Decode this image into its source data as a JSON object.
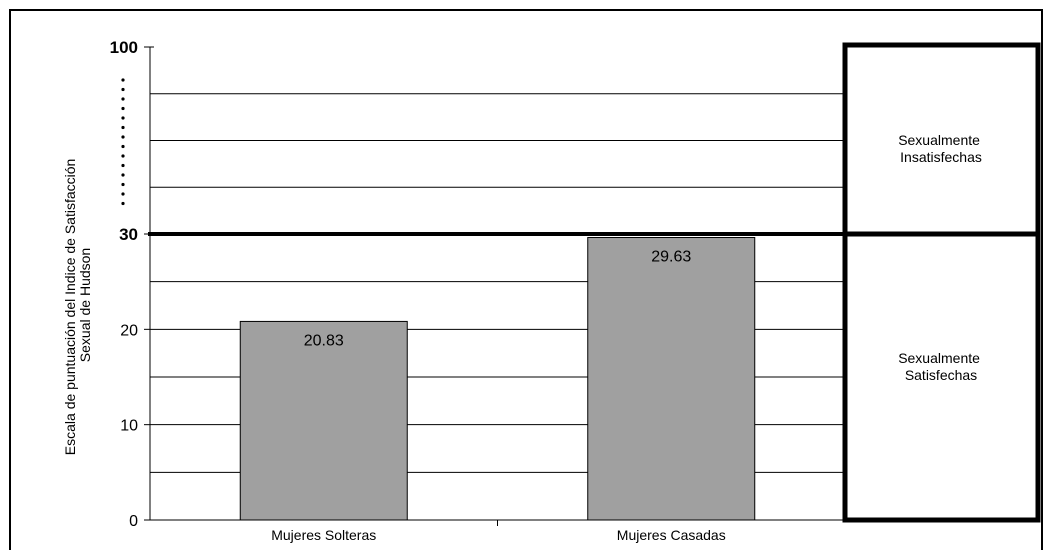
{
  "chart_data": {
    "type": "bar",
    "title": "",
    "xlabel": "",
    "ylabel": [
      "Escala de puntuación del Indice de Satisfacción",
      "Sexual de Hudson"
    ],
    "categories": [
      "Mujeres Solteras",
      "Mujeres Casadas"
    ],
    "values": [
      20.83,
      29.63
    ],
    "value_labels": [
      "20.83",
      "29.63"
    ],
    "y_ticks": [
      "0",
      "10",
      "20",
      "30",
      "100"
    ],
    "y_axis_break": {
      "from": 30,
      "to": 100
    },
    "ylim": [
      0,
      100
    ],
    "threshold": 30,
    "zones": [
      {
        "lines": [
          "Sexualmente",
          "Insatisfechas"
        ],
        "range": [
          30,
          100
        ]
      },
      {
        "lines": [
          "Sexualmente",
          "Satisfechas"
        ],
        "range": [
          0,
          30
        ]
      }
    ],
    "grid": true,
    "bar_color": "#a0a0a0"
  }
}
